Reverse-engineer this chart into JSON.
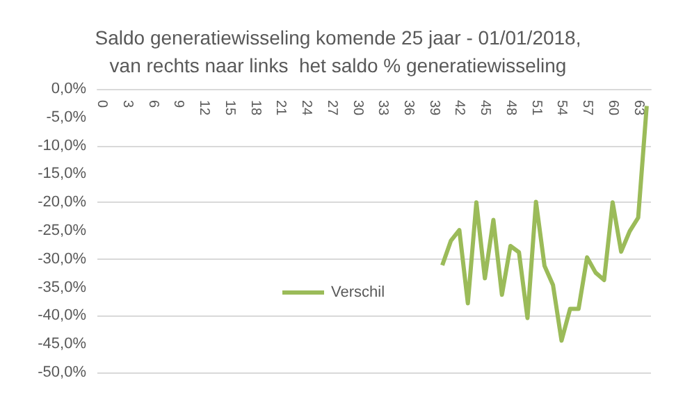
{
  "chart_data": {
    "type": "line",
    "title": "Saldo generatiewisseling komende 25 jaar - 01/01/2018,\nvan rechts naar links  het saldo % generatiewisseling",
    "categories": [
      "0",
      null,
      null,
      "3",
      null,
      null,
      "6",
      null,
      null,
      "9",
      null,
      null,
      "12",
      null,
      null,
      "15",
      null,
      null,
      "18",
      null,
      null,
      "21",
      null,
      null,
      "24",
      null,
      null,
      "27",
      null,
      null,
      "30",
      null,
      null,
      "33",
      null,
      null,
      "36",
      null,
      null,
      "39",
      null,
      null,
      "42",
      null,
      null,
      "45",
      null,
      null,
      "48",
      null,
      null,
      "51",
      null,
      null,
      "54",
      null,
      null,
      "57",
      null,
      null,
      "60",
      null,
      null,
      "63",
      null
    ],
    "series": [
      {
        "name": "Verschil",
        "color": "#9bbb59",
        "values": [
          null,
          null,
          null,
          null,
          null,
          null,
          null,
          null,
          null,
          null,
          null,
          null,
          null,
          null,
          null,
          null,
          null,
          null,
          null,
          null,
          null,
          null,
          null,
          null,
          null,
          null,
          null,
          null,
          null,
          null,
          null,
          null,
          null,
          null,
          null,
          null,
          null,
          null,
          null,
          null,
          -31.1,
          -26.8,
          -24.9,
          -37.8,
          -20.0,
          -33.4,
          -23.1,
          -36.3,
          -27.7,
          -28.8,
          -40.4,
          -19.9,
          -31.2,
          -34.6,
          -44.4,
          -38.8,
          -38.8,
          -29.7,
          -32.4,
          -33.7,
          -20.0,
          -28.7,
          -25.1,
          -22.7,
          -3.0
        ]
      }
    ],
    "ylim": [
      -50,
      0
    ],
    "yticks": [
      {
        "value": -50,
        "label": "-50,0%"
      },
      {
        "value": -45,
        "label": "-45,0%"
      },
      {
        "value": -40,
        "label": "-40,0%"
      },
      {
        "value": -35,
        "label": "-35,0%"
      },
      {
        "value": -30,
        "label": "-30,0%"
      },
      {
        "value": -25,
        "label": "-25,0%"
      },
      {
        "value": -20,
        "label": "-20,0%"
      },
      {
        "value": -15,
        "label": "-15,0%"
      },
      {
        "value": -10,
        "label": "-10,0%"
      },
      {
        "value": -5,
        "label": "-5,0%"
      },
      {
        "value": 0,
        "label": "0,0%"
      }
    ],
    "grid": "y",
    "legend": "center",
    "marker": "none",
    "line_style": "solid"
  }
}
